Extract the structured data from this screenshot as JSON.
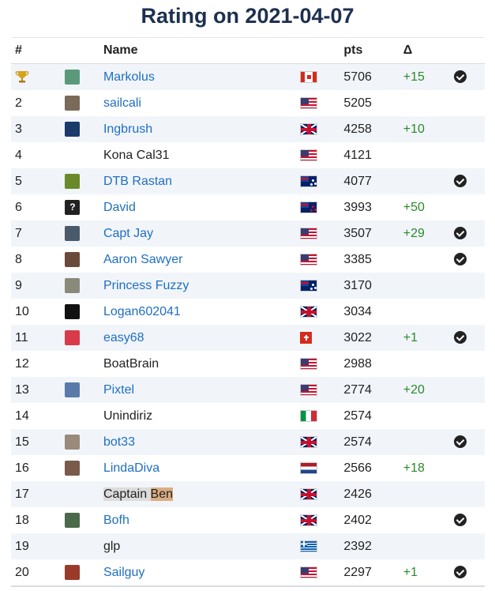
{
  "title": "Rating on 2021-04-07",
  "columns": {
    "rank": "#",
    "name": "Name",
    "pts": "pts",
    "delta": "Δ"
  },
  "rows": [
    {
      "rank": "",
      "trophy": true,
      "avatar": "#5a9a7a",
      "name": "Markolus",
      "link": true,
      "flag": "ca",
      "pts": "5706",
      "delta": "+15",
      "check": true
    },
    {
      "rank": "2",
      "avatar": "#7a6a5a",
      "name": "sailcali",
      "link": true,
      "flag": "us",
      "pts": "5205",
      "delta": "",
      "check": false
    },
    {
      "rank": "3",
      "avatar": "#1a3a6a",
      "name": "Ingbrush",
      "link": true,
      "flag": "gb",
      "pts": "4258",
      "delta": "+10",
      "check": false
    },
    {
      "rank": "4",
      "avatar": null,
      "name": "Kona Cal31",
      "link": false,
      "flag": "us",
      "pts": "4121",
      "delta": "",
      "check": false
    },
    {
      "rank": "5",
      "avatar": "#6a8a2a",
      "name": "DTB Rastan",
      "link": true,
      "flag": "au",
      "pts": "4077",
      "delta": "",
      "check": true
    },
    {
      "rank": "6",
      "avatar": "#222222",
      "avatar_q": true,
      "name": "David",
      "link": true,
      "flag": "nz",
      "pts": "3993",
      "delta": "+50",
      "check": false
    },
    {
      "rank": "7",
      "avatar": "#4a5a6a",
      "name": "Capt Jay",
      "link": true,
      "flag": "us",
      "pts": "3507",
      "delta": "+29",
      "check": true
    },
    {
      "rank": "8",
      "avatar": "#6a4a3a",
      "name": "Aaron Sawyer",
      "link": true,
      "flag": "us",
      "pts": "3385",
      "delta": "",
      "check": true
    },
    {
      "rank": "9",
      "avatar": "#8a8a7a",
      "name": "Princess Fuzzy",
      "link": true,
      "flag": "au",
      "pts": "3170",
      "delta": "",
      "check": false
    },
    {
      "rank": "10",
      "avatar": "#111111",
      "name": "Logan602041",
      "link": true,
      "flag": "gb",
      "pts": "3034",
      "delta": "",
      "check": false
    },
    {
      "rank": "11",
      "avatar": "#d83a4a",
      "name": "easy68",
      "link": true,
      "flag": "ch",
      "pts": "3022",
      "delta": "+1",
      "check": true
    },
    {
      "rank": "12",
      "avatar": null,
      "name": "BoatBrain",
      "link": false,
      "flag": "us",
      "pts": "2988",
      "delta": "",
      "check": false
    },
    {
      "rank": "13",
      "avatar": "#5a7aaa",
      "name": "Pixtel",
      "link": true,
      "flag": "us",
      "pts": "2774",
      "delta": "+20",
      "check": false
    },
    {
      "rank": "14",
      "avatar": null,
      "name": "Unindiriz",
      "link": false,
      "flag": "it",
      "pts": "2574",
      "delta": "",
      "check": false
    },
    {
      "rank": "15",
      "avatar": "#9a8a7a",
      "name": "bot33",
      "link": true,
      "flag": "gb",
      "pts": "2574",
      "delta": "",
      "check": true
    },
    {
      "rank": "16",
      "avatar": "#7a5a4a",
      "name": "LindaDiva",
      "link": true,
      "flag": "nl",
      "pts": "2566",
      "delta": "+18",
      "check": false
    },
    {
      "rank": "17",
      "avatar": null,
      "name_parts": [
        "Captain ",
        "Ben"
      ],
      "link": false,
      "flag": "gb",
      "pts": "2426",
      "delta": "",
      "check": false
    },
    {
      "rank": "18",
      "avatar": "#4a6a4a",
      "name": "Bofh",
      "link": true,
      "flag": "gb",
      "pts": "2402",
      "delta": "",
      "check": true
    },
    {
      "rank": "19",
      "avatar": null,
      "name": "glp",
      "link": false,
      "flag": "gr",
      "pts": "2392",
      "delta": "",
      "check": false
    },
    {
      "rank": "20",
      "avatar": "#9a3a2a",
      "name": "Sailguy",
      "link": true,
      "flag": "us",
      "pts": "2297",
      "delta": "+1",
      "check": true
    }
  ]
}
